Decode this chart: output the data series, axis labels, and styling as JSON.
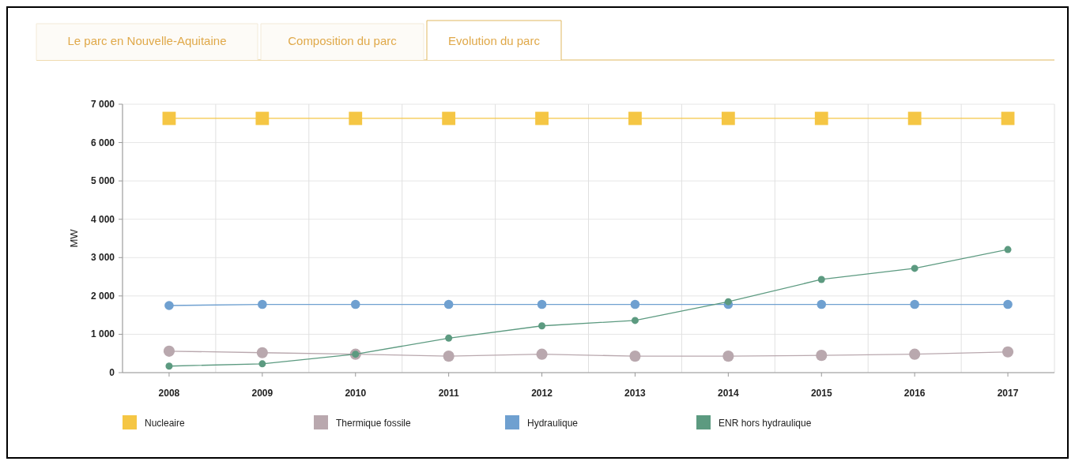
{
  "chart_data": {
    "type": "line",
    "ylabel": "MW",
    "annotations": [
      "Le parc en Nouvelle-Aquitaine",
      "Composition du parc",
      "Evolution du parc"
    ],
    "categories": [
      "2008",
      "2009",
      "2010",
      "2011",
      "2012",
      "2013",
      "2014",
      "2015",
      "2016",
      "2017"
    ],
    "series": [
      {
        "name": "Nucleaire",
        "color": "#f5c644",
        "marker": "square",
        "values": [
          6630,
          6630,
          6630,
          6630,
          6630,
          6630,
          6630,
          6630,
          6630,
          6630
        ]
      },
      {
        "name": "Thermique fossile",
        "color": "#b9a8ae",
        "marker": "circle",
        "values": [
          560,
          520,
          480,
          430,
          480,
          430,
          430,
          450,
          480,
          540
        ]
      },
      {
        "name": "Hydraulique",
        "color": "#6fa0d0",
        "marker": "circle",
        "values": [
          1750,
          1780,
          1780,
          1780,
          1780,
          1780,
          1780,
          1780,
          1780,
          1780
        ]
      },
      {
        "name": "ENR hors hydraulique",
        "color": "#5c9a80",
        "marker": "circle",
        "values": [
          170,
          230,
          480,
          900,
          1220,
          1360,
          1850,
          2430,
          2720,
          3210
        ]
      }
    ],
    "ylim": [
      0,
      7000
    ],
    "yticks": [
      0,
      {
        "value": 1000,
        "label": "1 000"
      },
      {
        "value": 2000,
        "label": "2 000"
      },
      {
        "value": 3000,
        "label": "3 000"
      },
      {
        "value": 4000,
        "label": "4 000"
      },
      {
        "value": 5000,
        "label": "5 000"
      },
      {
        "value": 6000,
        "label": "6 000"
      },
      {
        "value": 7000,
        "label": "7 000"
      }
    ],
    "grid": true,
    "legend": "bottom"
  }
}
